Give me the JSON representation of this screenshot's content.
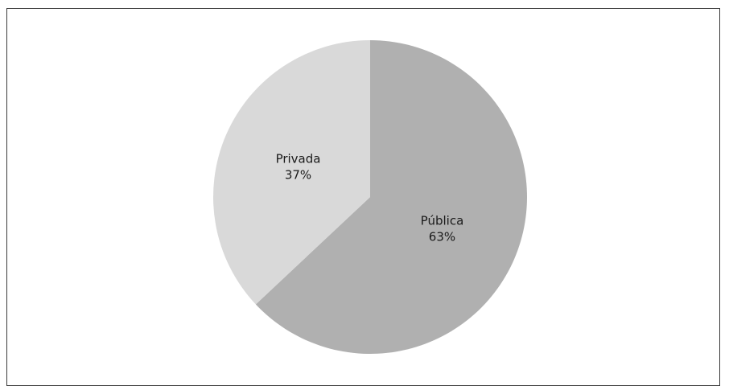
{
  "chart_data": {
    "type": "pie",
    "title": "",
    "slices": [
      {
        "label": "Pública",
        "value": 63,
        "percent_label": "63%",
        "color": "#b0b0b0"
      },
      {
        "label": "Privada",
        "value": 37,
        "percent_label": "37%",
        "color": "#d9d9d9"
      }
    ],
    "start_angle": "12 o'clock",
    "direction": "clockwise",
    "legend": "none"
  }
}
